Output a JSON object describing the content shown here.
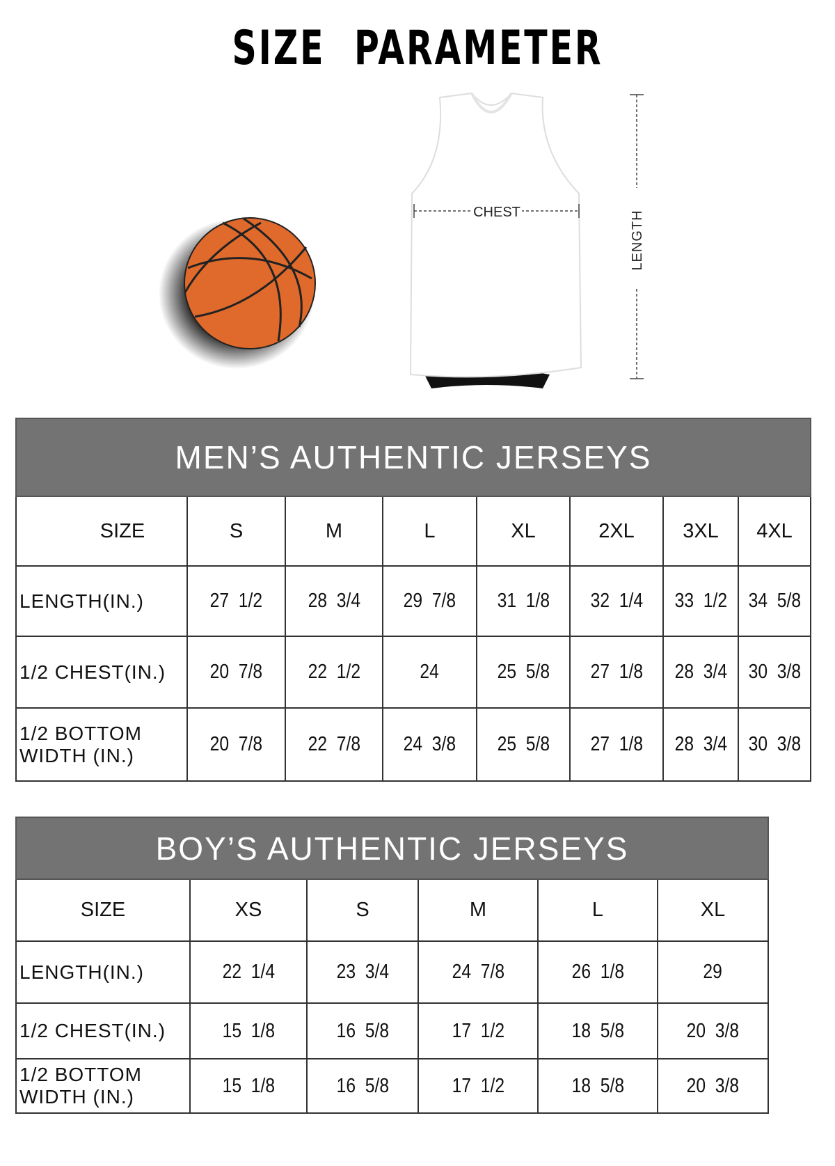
{
  "title": "SIZE PARAMETER",
  "diagram": {
    "chest_label": "CHEST",
    "length_label": "LENGTH",
    "ball_color": "#e06a2c",
    "header_color": "#737373"
  },
  "men": {
    "title": "MEN’S AUTHENTIC JERSEYS",
    "size_label": "SIZE",
    "sizes": [
      "S",
      "M",
      "L",
      "XL",
      "2XL",
      "3XL",
      "4XL"
    ],
    "rows": [
      {
        "label": "LENGTH(IN.)",
        "values": [
          "27  1/2",
          "28  3/4",
          "29  7/8",
          "31  1/8",
          "32  1/4",
          "33  1/2",
          "34  5/8"
        ]
      },
      {
        "label": "1/2 CHEST(IN.)",
        "values": [
          "20  7/8",
          "22  1/2",
          "24",
          "25  5/8",
          "27  1/8",
          "28  3/4",
          "30  3/8"
        ]
      },
      {
        "label": "1/2 BOTTOM WIDTH  (IN.)",
        "values": [
          "20  7/8",
          "22  7/8",
          "24  3/8",
          "25  5/8",
          "27  1/8",
          "28  3/4",
          "30  3/8"
        ]
      }
    ]
  },
  "boys": {
    "title": "BOY’S AUTHENTIC JERSEYS",
    "size_label": "SIZE",
    "sizes": [
      "XS",
      "S",
      "M",
      "L",
      "XL"
    ],
    "rows": [
      {
        "label": "LENGTH(IN.)",
        "values": [
          "22  1/4",
          "23  3/4",
          "24  7/8",
          "26  1/8",
          "29"
        ]
      },
      {
        "label": "1/2 CHEST(IN.)",
        "values": [
          "15  1/8",
          "16  5/8",
          "17  1/2",
          "18  5/8",
          "20  3/8"
        ]
      },
      {
        "label": "1/2 BOTTOM WIDTH  (IN.)",
        "values": [
          "15  1/8",
          "16  5/8",
          "17  1/2",
          "18  5/8",
          "20  3/8"
        ]
      }
    ]
  }
}
